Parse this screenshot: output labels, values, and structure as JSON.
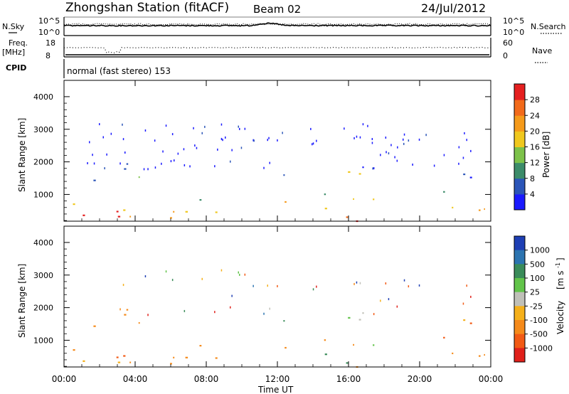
{
  "header": {
    "title": "Zhongshan Station (fitACF)",
    "beam": "Beam 02",
    "date": "24/Jul/2012"
  },
  "top_panel": {
    "left_label": "N.Sky",
    "left_ticks": [
      "10^5",
      "10^0"
    ],
    "right_ticks": [
      "10^5",
      "10^0"
    ],
    "right_label": "N.Search"
  },
  "freq_panel": {
    "left_label_1": "Freq.",
    "left_label_2": "[MHz]",
    "left_ticks": [
      "18",
      "8"
    ],
    "right_ticks": [
      "60",
      "0"
    ],
    "right_label": "Nave"
  },
  "cpid": {
    "label": "CPID",
    "text": "normal (fast stereo) 153"
  },
  "axes": {
    "xlabel": "Time UT",
    "xticks": [
      "00:00",
      "04:00",
      "08:00",
      "12:00",
      "16:00",
      "20:00",
      "00:00"
    ],
    "ylabel": "Slant Range [km]",
    "yticks": [
      "1000",
      "2000",
      "3000",
      "4000"
    ]
  },
  "power_scale": {
    "label": "Power [dB]",
    "ticks": [
      "4",
      "8",
      "12",
      "16",
      "20",
      "24",
      "28"
    ],
    "colors": [
      "#1a1aff",
      "#2b55b8",
      "#3c8c6a",
      "#7dc24a",
      "#f0c81e",
      "#f59a1a",
      "#f26a1a",
      "#e51f1f"
    ]
  },
  "velocity_scale": {
    "label": "Velocity",
    "unit": "[m s",
    "unit_sup": "-1",
    "unit_close": "]",
    "ticks": [
      "1000",
      "500",
      "100",
      "25",
      "-25",
      "-100",
      "-500",
      "-1000"
    ],
    "colors": [
      "#1e3fb4",
      "#2c74b0",
      "#3a8c5a",
      "#62c44a",
      "#c0c0b8",
      "#f5b01a",
      "#f58a1a",
      "#f25a14",
      "#e0201a"
    ]
  },
  "chart_data": {
    "type": "heatmap",
    "panels": [
      {
        "name": "Power",
        "xlim": [
          0,
          24
        ],
        "ylim": [
          180,
          4500
        ],
        "xlabel": "Time UT",
        "ylabel": "Slant Range [km]",
        "colorbar": "Power [dB]",
        "colorbar_range": [
          0,
          30
        ]
      },
      {
        "name": "Velocity",
        "xlim": [
          0,
          24
        ],
        "ylim": [
          180,
          4500
        ],
        "xlabel": "Time UT",
        "ylabel": "Slant Range [km]",
        "colorbar": "Velocity [m s-1]",
        "colorbar_range": [
          -1000,
          1000
        ]
      }
    ],
    "scatter_regions": [
      {
        "t_start": 0.0,
        "t_end": 4.5,
        "range_low": 200,
        "range_high": 1600
      },
      {
        "t_start": 2.5,
        "t_end": 4.5,
        "range_low": 800,
        "range_high": 2000
      },
      {
        "t_start": 4.5,
        "t_end": 10.3,
        "range_low": 250,
        "range_high": 1000
      },
      {
        "t_start": 10.3,
        "t_end": 11.3,
        "range_low": 200,
        "range_high": 500
      },
      {
        "t_start": 11.8,
        "t_end": 12.9,
        "range_low": 300,
        "range_high": 1700
      },
      {
        "t_start": 13.5,
        "t_end": 18.3,
        "range_low": 200,
        "range_high": 1300
      },
      {
        "t_start": 15.0,
        "t_end": 18.0,
        "range_low": 1200,
        "range_high": 2000
      },
      {
        "t_start": 20.6,
        "t_end": 24.0,
        "range_low": 200,
        "range_high": 1700
      }
    ]
  }
}
